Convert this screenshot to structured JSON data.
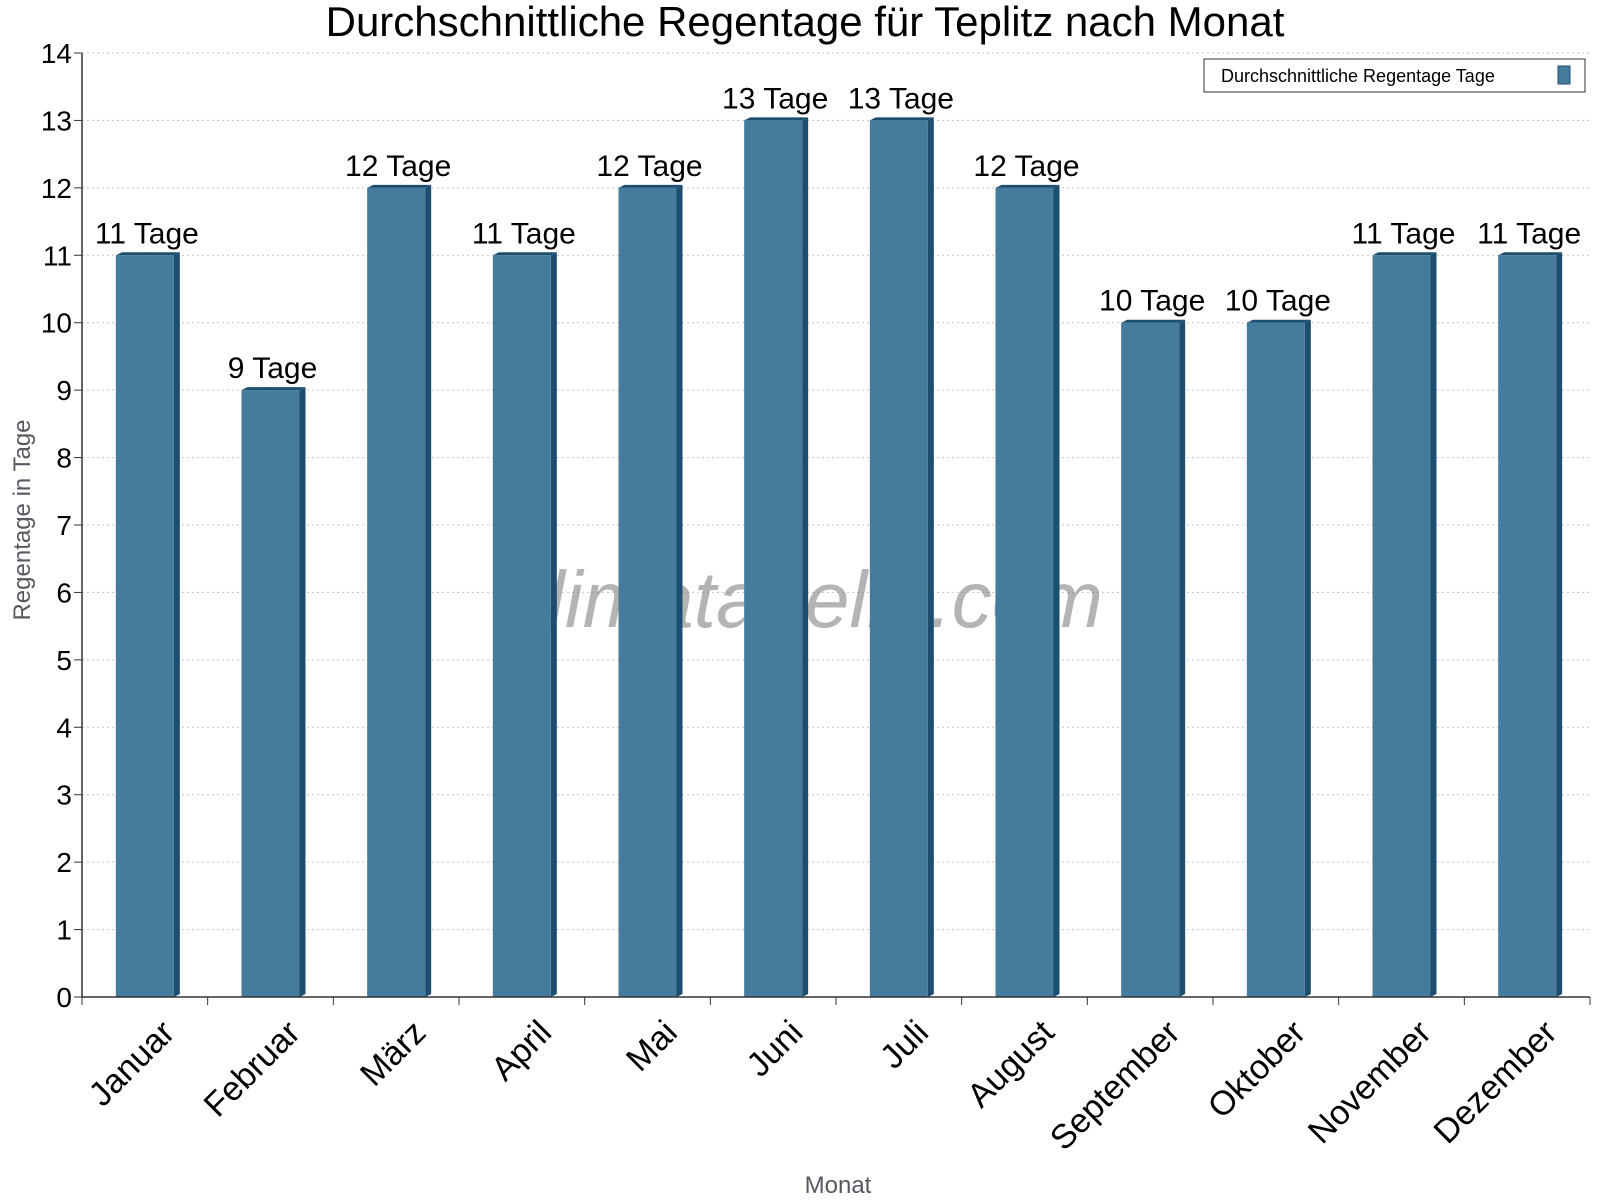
{
  "chart_data": {
    "type": "bar",
    "title": "Durchschnittliche Regentage für Teplitz nach Monat",
    "xlabel": "Monat",
    "ylabel": "Regentage in Tage",
    "categories": [
      "Januar",
      "Februar",
      "März",
      "April",
      "Mai",
      "Juni",
      "Juli",
      "August",
      "September",
      "Oktober",
      "November",
      "Dezember"
    ],
    "series": [
      {
        "name": "Durchschnittliche Regentage Tage",
        "values": [
          11,
          9,
          12,
          11,
          12,
          13,
          13,
          12,
          10,
          10,
          11,
          11
        ],
        "data_labels": [
          "11 Tage",
          "9 Tage",
          "12 Tage",
          "11 Tage",
          "12 Tage",
          "13 Tage",
          "13 Tage",
          "12 Tage",
          "10 Tage",
          "10 Tage",
          "11 Tage",
          "11 Tage"
        ],
        "color": "#457b9d",
        "side_color": "#1d4e6f"
      }
    ],
    "ylim": [
      0,
      14
    ],
    "yticks": [
      0,
      1,
      2,
      3,
      4,
      5,
      6,
      7,
      8,
      9,
      10,
      11,
      12,
      13,
      14
    ],
    "grid": true,
    "legend_position": "top-right"
  },
  "watermark": "klimatabelle.com"
}
